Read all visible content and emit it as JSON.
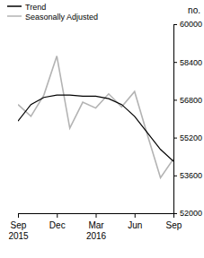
{
  "chart_data": {
    "type": "line",
    "categories": [
      "Sep 2015",
      null,
      null,
      "Dec",
      null,
      null,
      "Mar 2016",
      null,
      null,
      "Jun",
      null,
      null,
      "Sep"
    ],
    "series": [
      {
        "name": "Trend",
        "color": "#000000",
        "values": [
          55900,
          56600,
          56900,
          57000,
          57000,
          56950,
          56950,
          56850,
          56600,
          56100,
          55400,
          54700,
          54200
        ]
      },
      {
        "name": "Seasonally Adjusted",
        "color": "#b3b3b3",
        "values": [
          56600,
          56100,
          57000,
          58650,
          55600,
          56700,
          56450,
          57050,
          56500,
          57150,
          55300,
          53500,
          54300
        ]
      }
    ],
    "ylabel": "no.",
    "ylim": [
      52000,
      60000
    ],
    "yticks": [
      52000,
      53600,
      55200,
      56800,
      58400,
      60000
    ],
    "legend": "top-left",
    "grid": false
  }
}
